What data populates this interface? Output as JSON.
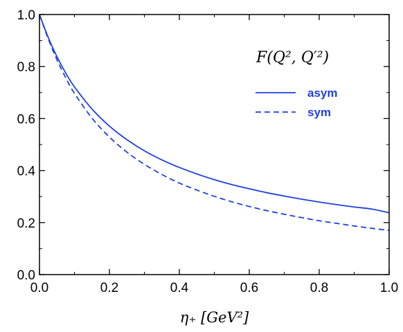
{
  "chart_data": {
    "type": "line",
    "title": "F(Q², Q′²)",
    "xlabel": "η₊ [GeV²]",
    "ylabel": "",
    "xlim": [
      0.0,
      1.0
    ],
    "ylim": [
      0.0,
      1.0
    ],
    "x_ticks": [
      "0.0",
      "0.2",
      "0.4",
      "0.6",
      "0.8",
      "1.0"
    ],
    "y_ticks": [
      "0.0",
      "0.2",
      "0.4",
      "0.6",
      "0.8",
      "1.0"
    ],
    "grid": false,
    "legend_position": "top-right",
    "line_color": "#1f3fe0",
    "series": [
      {
        "name": "asym",
        "style": "solid",
        "x": [
          0.0,
          0.025,
          0.05,
          0.075,
          0.1,
          0.15,
          0.2,
          0.25,
          0.3,
          0.35,
          0.4,
          0.45,
          0.5,
          0.55,
          0.6,
          0.65,
          0.7,
          0.75,
          0.8,
          0.85,
          0.9,
          0.95,
          1.0
        ],
        "y": [
          1.0,
          0.912,
          0.838,
          0.775,
          0.722,
          0.637,
          0.571,
          0.519,
          0.476,
          0.441,
          0.412,
          0.387,
          0.365,
          0.346,
          0.33,
          0.315,
          0.302,
          0.29,
          0.279,
          0.269,
          0.26,
          0.252,
          0.238
        ]
      },
      {
        "name": "sym",
        "style": "dashed",
        "x": [
          0.0,
          0.025,
          0.05,
          0.075,
          0.1,
          0.15,
          0.2,
          0.25,
          0.3,
          0.35,
          0.4,
          0.45,
          0.5,
          0.55,
          0.6,
          0.65,
          0.7,
          0.75,
          0.8,
          0.85,
          0.9,
          0.95,
          1.0
        ],
        "y": [
          1.0,
          0.907,
          0.826,
          0.757,
          0.697,
          0.602,
          0.529,
          0.471,
          0.424,
          0.385,
          0.352,
          0.325,
          0.301,
          0.28,
          0.262,
          0.246,
          0.232,
          0.219,
          0.207,
          0.197,
          0.187,
          0.178,
          0.17
        ]
      }
    ]
  }
}
